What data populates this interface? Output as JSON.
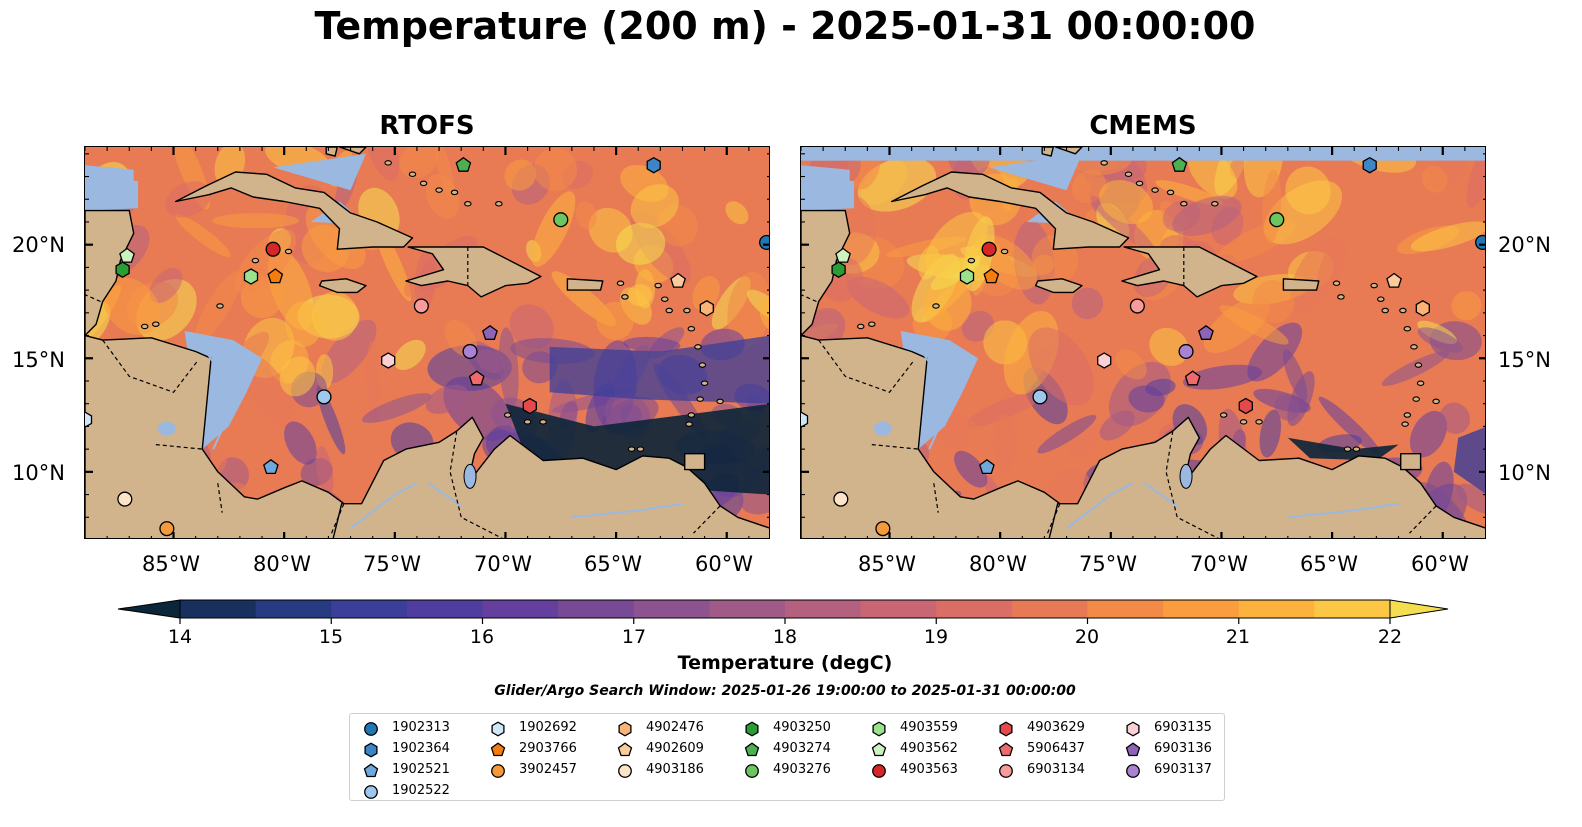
{
  "title": "Temperature (200 m) - 2025-01-31 00:00:00",
  "panels": [
    {
      "title": "RTOFS"
    },
    {
      "title": "CMEMS"
    }
  ],
  "axes": {
    "lon_ticks": [
      "85°W",
      "80°W",
      "75°W",
      "70°W",
      "65°W",
      "60°W"
    ],
    "lat_ticks": [
      "20°N",
      "15°N",
      "10°N"
    ]
  },
  "colorbar": {
    "label": "Temperature (degC)",
    "min": 14,
    "max": 22,
    "ticks": [
      "14",
      "15",
      "16",
      "17",
      "18",
      "19",
      "20",
      "21",
      "22"
    ],
    "colors": [
      "#0b2539",
      "#17305e",
      "#263b82",
      "#3b3f99",
      "#4f3ea0",
      "#643f9e",
      "#784a96",
      "#8c5390",
      "#a05a88",
      "#b4607f",
      "#c86674",
      "#da6e66",
      "#e87957",
      "#f38a48",
      "#fa9d3f",
      "#fcb23c",
      "#fbc744",
      "#f4de50"
    ]
  },
  "search_window": "Glider/Argo Search Window: 2025-01-26 19:00:00 to 2025-01-31 00:00:00",
  "legend": [
    {
      "id": "1902313",
      "marker": "circle",
      "color": "#1f77b4"
    },
    {
      "id": "1902364",
      "marker": "hexagon",
      "color": "#3d85c6"
    },
    {
      "id": "1902521",
      "marker": "pentagon",
      "color": "#6fa8dc"
    },
    {
      "id": "1902522",
      "marker": "circle",
      "color": "#9ec9ec"
    },
    {
      "id": "1902692",
      "marker": "hexagon",
      "color": "#cfe8f7"
    },
    {
      "id": "2903766",
      "marker": "pentagon",
      "color": "#f57c0f"
    },
    {
      "id": "3902457",
      "marker": "circle",
      "color": "#f59a3a"
    },
    {
      "id": "4902476",
      "marker": "hexagon",
      "color": "#f9b476"
    },
    {
      "id": "4902609",
      "marker": "pentagon",
      "color": "#fbcb9c"
    },
    {
      "id": "4903186",
      "marker": "circle",
      "color": "#fde3c8"
    },
    {
      "id": "4903250",
      "marker": "hexagon",
      "color": "#2a9d34"
    },
    {
      "id": "4903274",
      "marker": "pentagon",
      "color": "#4caf50"
    },
    {
      "id": "4903276",
      "marker": "circle",
      "color": "#6cc65f"
    },
    {
      "id": "4903559",
      "marker": "hexagon",
      "color": "#9be28f"
    },
    {
      "id": "4903562",
      "marker": "pentagon",
      "color": "#cdf2c2"
    },
    {
      "id": "4903563",
      "marker": "circle",
      "color": "#d62728"
    },
    {
      "id": "4903629",
      "marker": "hexagon",
      "color": "#e34a4a"
    },
    {
      "id": "5906437",
      "marker": "pentagon",
      "color": "#ef6b6b"
    },
    {
      "id": "6903134",
      "marker": "circle",
      "color": "#f79b9b"
    },
    {
      "id": "6903135",
      "marker": "hexagon",
      "color": "#fbd0d4"
    },
    {
      "id": "6903136",
      "marker": "pentagon",
      "color": "#8e63b8"
    },
    {
      "id": "6903137",
      "marker": "circle",
      "color": "#a982d1"
    }
  ],
  "floats": [
    {
      "id": "1902313",
      "lon": -58.2,
      "lat": 20.1
    },
    {
      "id": "1902364",
      "lon": -63.3,
      "lat": 23.5
    },
    {
      "id": "1902521",
      "lon": -80.6,
      "lat": 10.2
    },
    {
      "id": "1902522",
      "lon": -78.2,
      "lat": 13.3
    },
    {
      "id": "1902692",
      "lon": -89.0,
      "lat": 12.3
    },
    {
      "id": "2903766",
      "lon": -80.4,
      "lat": 18.6
    },
    {
      "id": "3902457",
      "lon": -85.3,
      "lat": 7.5
    },
    {
      "id": "4902476",
      "lon": -60.9,
      "lat": 17.2
    },
    {
      "id": "4902609",
      "lon": -62.2,
      "lat": 18.4
    },
    {
      "id": "4903186",
      "lon": -87.2,
      "lat": 8.8
    },
    {
      "id": "4903250",
      "lon": -87.3,
      "lat": 18.9
    },
    {
      "id": "4903274",
      "lon": -71.9,
      "lat": 23.5
    },
    {
      "id": "4903276",
      "lon": -67.5,
      "lat": 21.1
    },
    {
      "id": "4903559",
      "lon": -81.5,
      "lat": 18.6
    },
    {
      "id": "4903562",
      "lon": -87.1,
      "lat": 19.5
    },
    {
      "id": "4903563",
      "lon": -80.5,
      "lat": 19.8
    },
    {
      "id": "4903629",
      "lon": -68.9,
      "lat": 12.9
    },
    {
      "id": "5906437",
      "lon": -71.3,
      "lat": 14.1
    },
    {
      "id": "6903134",
      "lon": -73.8,
      "lat": 17.3
    },
    {
      "id": "6903135",
      "lon": -75.3,
      "lat": 14.9
    },
    {
      "id": "6903136",
      "lon": -70.7,
      "lat": 16.1
    },
    {
      "id": "6903137",
      "lon": -71.6,
      "lat": 15.3
    }
  ]
}
